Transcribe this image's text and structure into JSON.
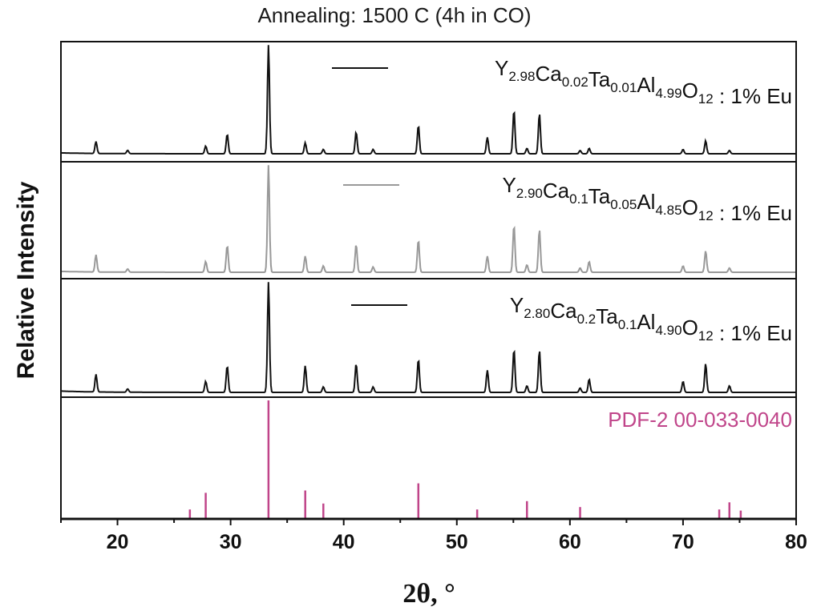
{
  "chart_data": {
    "type": "line",
    "title": "Annealing: 1500 C (4h in CO)",
    "xlabel": "2θ, °",
    "ylabel": "Relative Intensity",
    "xlim": [
      15,
      80
    ],
    "xticks": [
      20,
      30,
      40,
      50,
      60,
      70,
      80
    ],
    "grid": false,
    "panels": [
      {
        "name": "Y2.98Ca0.02Ta0.01Al4.99O12 : 1% Eu",
        "legend_parts": [
          {
            "t": "Y",
            "sub": false
          },
          {
            "t": "2.98",
            "sub": true
          },
          {
            "t": "Ca",
            "sub": false
          },
          {
            "t": "0.02",
            "sub": true
          },
          {
            "t": "Ta",
            "sub": false
          },
          {
            "t": "0.01",
            "sub": true
          },
          {
            "t": "Al",
            "sub": false
          },
          {
            "t": "4.99",
            "sub": true
          },
          {
            "t": "O",
            "sub": false
          },
          {
            "t": "12",
            "sub": true
          },
          {
            "t": " : 1% Eu",
            "sub": false
          }
        ],
        "line_color": "#111111",
        "ymax": 1.0,
        "peaks": [
          [
            18.1,
            0.11
          ],
          [
            20.9,
            0.03
          ],
          [
            27.8,
            0.07
          ],
          [
            29.7,
            0.18
          ],
          [
            33.35,
            1.0
          ],
          [
            36.6,
            0.1
          ],
          [
            38.2,
            0.04
          ],
          [
            41.1,
            0.2
          ],
          [
            42.6,
            0.04
          ],
          [
            46.6,
            0.26
          ],
          [
            52.7,
            0.15
          ],
          [
            55.05,
            0.4
          ],
          [
            56.2,
            0.05
          ],
          [
            57.3,
            0.37
          ],
          [
            60.9,
            0.03
          ],
          [
            61.7,
            0.05
          ],
          [
            70.0,
            0.04
          ],
          [
            72.0,
            0.12
          ],
          [
            74.1,
            0.03
          ]
        ]
      },
      {
        "name": "Y2.90Ca0.1Ta0.05Al4.85O12 : 1% Eu",
        "legend_parts": [
          {
            "t": "Y",
            "sub": false
          },
          {
            "t": "2.90",
            "sub": true
          },
          {
            "t": "Ca",
            "sub": false
          },
          {
            "t": "0.1",
            "sub": true
          },
          {
            "t": "Ta",
            "sub": false
          },
          {
            "t": "0.05",
            "sub": true
          },
          {
            "t": "Al",
            "sub": false
          },
          {
            "t": "4.85",
            "sub": true
          },
          {
            "t": "O",
            "sub": false
          },
          {
            "t": "12",
            "sub": true
          },
          {
            "t": " : 1% Eu",
            "sub": false
          }
        ],
        "line_color": "#999999",
        "ymax": 1.0,
        "peaks": [
          [
            18.1,
            0.16
          ],
          [
            20.9,
            0.03
          ],
          [
            27.8,
            0.1
          ],
          [
            29.7,
            0.25
          ],
          [
            33.35,
            1.0
          ],
          [
            36.6,
            0.15
          ],
          [
            38.2,
            0.06
          ],
          [
            41.1,
            0.26
          ],
          [
            42.6,
            0.05
          ],
          [
            46.6,
            0.3
          ],
          [
            52.7,
            0.15
          ],
          [
            55.05,
            0.44
          ],
          [
            56.2,
            0.07
          ],
          [
            57.3,
            0.4
          ],
          [
            60.9,
            0.04
          ],
          [
            61.7,
            0.1
          ],
          [
            70.0,
            0.06
          ],
          [
            72.0,
            0.2
          ],
          [
            74.1,
            0.04
          ]
        ]
      },
      {
        "name": "Y2.80Ca0.2Ta0.1Al4.90O12 : 1% Eu",
        "legend_parts": [
          {
            "t": "Y",
            "sub": false
          },
          {
            "t": "2.80",
            "sub": true
          },
          {
            "t": "Ca",
            "sub": false
          },
          {
            "t": "0.2",
            "sub": true
          },
          {
            "t": "Ta",
            "sub": false
          },
          {
            "t": "0.1",
            "sub": true
          },
          {
            "t": "Al",
            "sub": false
          },
          {
            "t": "4.90",
            "sub": true
          },
          {
            "t": "O",
            "sub": false
          },
          {
            "t": "12",
            "sub": true
          },
          {
            "t": " : 1% Eu",
            "sub": false
          }
        ],
        "line_color": "#111111",
        "ymax": 1.0,
        "peaks": [
          [
            18.1,
            0.16
          ],
          [
            20.9,
            0.03
          ],
          [
            27.8,
            0.1
          ],
          [
            29.7,
            0.24
          ],
          [
            33.35,
            1.0
          ],
          [
            36.6,
            0.24
          ],
          [
            38.2,
            0.05
          ],
          [
            41.1,
            0.26
          ],
          [
            42.6,
            0.05
          ],
          [
            46.6,
            0.3
          ],
          [
            52.7,
            0.2
          ],
          [
            55.05,
            0.39
          ],
          [
            56.2,
            0.06
          ],
          [
            57.3,
            0.38
          ],
          [
            60.9,
            0.04
          ],
          [
            61.7,
            0.12
          ],
          [
            70.0,
            0.1
          ],
          [
            72.0,
            0.26
          ],
          [
            74.1,
            0.06
          ]
        ]
      },
      {
        "name": "PDF-2 00-033-0040",
        "legend_parts": [
          {
            "t": "PDF-2 00-033-0040",
            "sub": false
          }
        ],
        "line_color": "#c0458a",
        "ymax": 1.0,
        "sticks": [
          [
            26.4,
            0.08
          ],
          [
            27.8,
            0.22
          ],
          [
            33.35,
            1.0
          ],
          [
            36.6,
            0.24
          ],
          [
            38.2,
            0.13
          ],
          [
            46.6,
            0.3
          ],
          [
            51.8,
            0.08
          ],
          [
            56.2,
            0.15
          ],
          [
            60.9,
            0.1
          ],
          [
            73.2,
            0.08
          ],
          [
            74.1,
            0.14
          ],
          [
            75.1,
            0.07
          ]
        ]
      }
    ]
  }
}
